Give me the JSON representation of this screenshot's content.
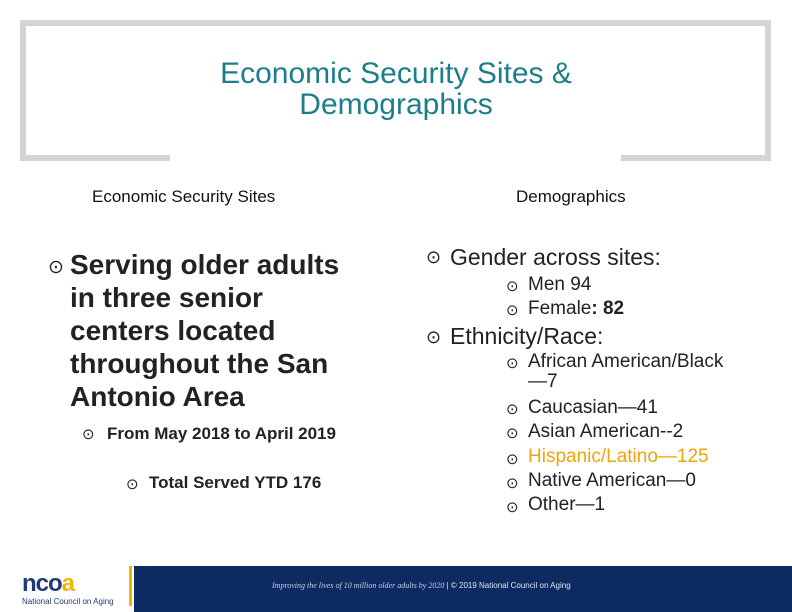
{
  "header": {
    "title_line1": "Economic Security Sites &",
    "title_line2": "Demographics"
  },
  "left": {
    "heading": "Economic Security Sites",
    "bullet_icon": "circle-dot-icon",
    "main_text": "Serving older adults in three senior centers located throughout the San Antonio Area",
    "sub_text": "From May 2018 to April 2019",
    "subsub_text": "Total Served YTD 176"
  },
  "right": {
    "heading": "Demographics",
    "gender_label": "Gender across sites:",
    "men": "Men 94",
    "female_label": "Female",
    "female_value": ": 82",
    "ethnicity_label": "Ethnicity/Race:",
    "ethnicity_items": [
      {
        "text": "African American/Black—7",
        "color": "#222222"
      },
      {
        "text": "Caucasian—41",
        "color": "#222222"
      },
      {
        "text": "Asian American--2",
        "color": "#222222"
      },
      {
        "text": "Hispanic/Latino—125",
        "color": "#f0a30a"
      },
      {
        "text": "Native American—0",
        "color": "#222222"
      },
      {
        "text": "Other—1",
        "color": "#222222"
      }
    ]
  },
  "footer": {
    "logo_main": "ncoa",
    "logo_sub": "National Council on Aging",
    "tagline_italic": "Improving the lives of 10 million older adults by 2020",
    "tagline_rest": " | © 2019 National Council on Aging",
    "band_color": "#0e2a62",
    "accent_color": "#f2b600"
  }
}
